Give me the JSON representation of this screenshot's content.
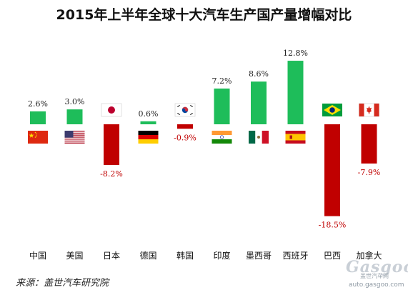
{
  "chart_data": {
    "type": "bar",
    "title": "2015年上半年全球十大汽车生产国产量增幅对比",
    "categories": [
      "中国",
      "美国",
      "日本",
      "德国",
      "韩国",
      "印度",
      "墨西哥",
      "西班牙",
      "巴西",
      "加拿大"
    ],
    "values": [
      2.6,
      3.0,
      -8.2,
      0.6,
      -0.9,
      7.2,
      8.6,
      12.8,
      -18.5,
      -7.9
    ],
    "value_labels": [
      "2.6%",
      "3.0%",
      "-8.2%",
      "0.6%",
      "-0.9%",
      "7.2%",
      "8.6%",
      "12.8%",
      "-18.5%",
      "-7.9%"
    ],
    "flags": [
      "china-flag",
      "usa-flag",
      "japan-flag",
      "germany-flag",
      "south-korea-flag",
      "india-flag",
      "mexico-flag",
      "spain-flag",
      "brazil-flag",
      "canada-flag"
    ],
    "ylim": [
      -18.5,
      12.8
    ],
    "grid": false,
    "colors": {
      "positive": "#1ebd5a",
      "negative": "#c00000",
      "negative_label": "#c00000",
      "positive_label": "#222222"
    }
  },
  "source": "来源：盖世汽车研究院",
  "watermark": {
    "brand": "Gasgoo",
    "cn": "盖世汽车网",
    "url": "auto.gasgoo.com"
  }
}
